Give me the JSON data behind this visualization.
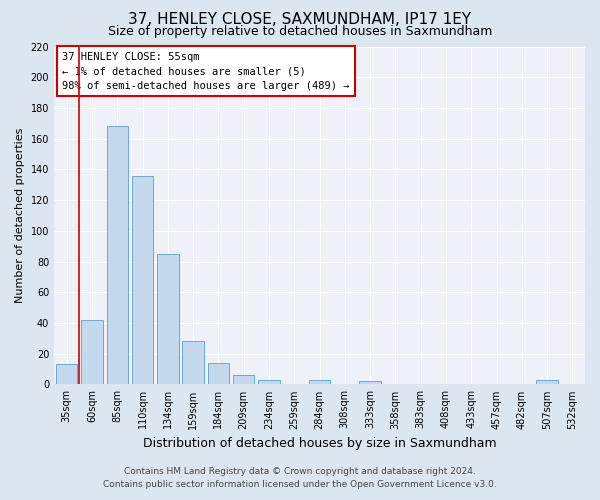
{
  "title": "37, HENLEY CLOSE, SAXMUNDHAM, IP17 1EY",
  "subtitle": "Size of property relative to detached houses in Saxmundham",
  "xlabel": "Distribution of detached houses by size in Saxmundham",
  "ylabel": "Number of detached properties",
  "categories": [
    "35sqm",
    "60sqm",
    "85sqm",
    "110sqm",
    "134sqm",
    "159sqm",
    "184sqm",
    "209sqm",
    "234sqm",
    "259sqm",
    "284sqm",
    "308sqm",
    "333sqm",
    "358sqm",
    "383sqm",
    "408sqm",
    "433sqm",
    "457sqm",
    "482sqm",
    "507sqm",
    "532sqm"
  ],
  "values": [
    13,
    42,
    168,
    136,
    85,
    28,
    14,
    6,
    3,
    0,
    3,
    0,
    2,
    0,
    0,
    0,
    0,
    0,
    0,
    3,
    0
  ],
  "bar_color": "#c5d9ee",
  "bar_edge_color": "#6aaad4",
  "ylim": [
    0,
    220
  ],
  "yticks": [
    0,
    20,
    40,
    60,
    80,
    100,
    120,
    140,
    160,
    180,
    200,
    220
  ],
  "vline_color": "#cc0000",
  "annotation_box_text": "37 HENLEY CLOSE: 55sqm\n← 1% of detached houses are smaller (5)\n98% of semi-detached houses are larger (489) →",
  "annotation_box_color": "#cc0000",
  "footer_line1": "Contains HM Land Registry data © Crown copyright and database right 2024.",
  "footer_line2": "Contains public sector information licensed under the Open Government Licence v3.0.",
  "bg_color": "#dce6f0",
  "plot_bg_color": "#eef2f8",
  "title_fontsize": 11,
  "subtitle_fontsize": 9,
  "xlabel_fontsize": 9,
  "ylabel_fontsize": 8,
  "tick_fontsize": 7,
  "footer_fontsize": 6.5
}
